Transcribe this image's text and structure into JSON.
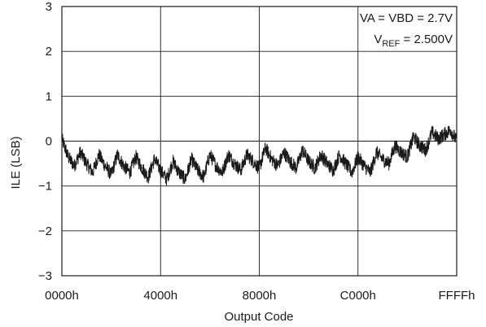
{
  "chart_data": {
    "type": "line",
    "xlabel": "Output Code",
    "ylabel": "ILE (LSB)",
    "x_ticks": [
      "0000h",
      "4000h",
      "8000h",
      "C000h",
      "FFFFh"
    ],
    "x_range": [
      0,
      65535
    ],
    "ylim": [
      -3,
      3
    ],
    "y_ticks": [
      "−3",
      "−2",
      "−1",
      "0",
      "1",
      "2",
      "3"
    ],
    "y_tick_values": [
      -3,
      -2,
      -1,
      0,
      1,
      2,
      3
    ],
    "grid": true,
    "annotations": {
      "line1": "VA = VBD = 2.7V",
      "vref_main": "V",
      "vref_sub": "REF",
      "vref_rest": " = 2.500V"
    },
    "series": [
      {
        "color": "#1a1a1a",
        "x": [
          0,
          1024,
          2048,
          3072,
          4096,
          5120,
          6144,
          7168,
          8192,
          9216,
          10240,
          11264,
          12288,
          13312,
          14336,
          15360,
          16384,
          17408,
          18432,
          19456,
          20480,
          21504,
          22528,
          23552,
          24576,
          25600,
          26624,
          27648,
          28672,
          29696,
          30720,
          31744,
          32768,
          33792,
          34816,
          35840,
          36864,
          37888,
          38912,
          39936,
          40960,
          41984,
          43008,
          44032,
          45056,
          46080,
          47104,
          48128,
          49152,
          50176,
          51200,
          52224,
          53248,
          54272,
          55296,
          56320,
          57344,
          58368,
          59392,
          60416,
          61440,
          62464,
          63488,
          64512,
          65535
        ],
        "y": [
          0.05,
          -0.35,
          -0.55,
          -0.25,
          -0.5,
          -0.7,
          -0.3,
          -0.55,
          -0.75,
          -0.3,
          -0.55,
          -0.7,
          -0.35,
          -0.6,
          -0.8,
          -0.4,
          -0.65,
          -0.85,
          -0.45,
          -0.7,
          -0.85,
          -0.4,
          -0.65,
          -0.8,
          -0.3,
          -0.55,
          -0.7,
          -0.3,
          -0.5,
          -0.65,
          -0.3,
          -0.45,
          -0.6,
          -0.15,
          -0.4,
          -0.55,
          -0.25,
          -0.45,
          -0.6,
          -0.2,
          -0.45,
          -0.6,
          -0.3,
          -0.5,
          -0.65,
          -0.3,
          -0.5,
          -0.7,
          -0.35,
          -0.55,
          -0.7,
          -0.25,
          -0.4,
          -0.5,
          -0.1,
          -0.25,
          -0.35,
          0.1,
          -0.1,
          -0.2,
          0.2,
          0.05,
          0.15,
          0.25,
          0.0
        ]
      }
    ]
  }
}
